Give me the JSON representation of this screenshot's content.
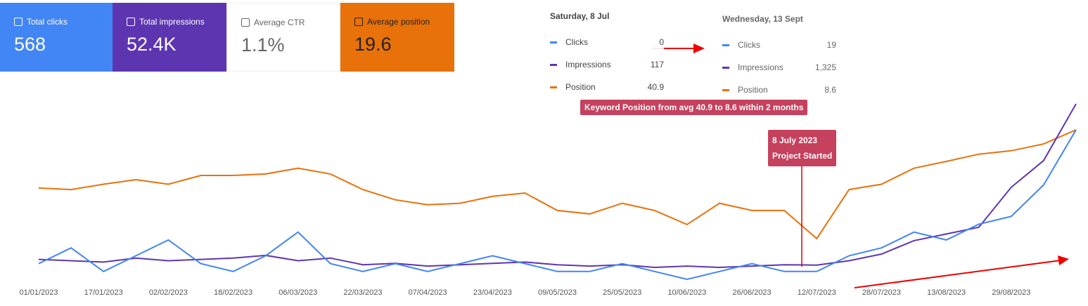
{
  "cards": [
    {
      "label": "Total clicks",
      "value": "568"
    },
    {
      "label": "Total impressions",
      "value": "52.4K"
    },
    {
      "label": "Average CTR",
      "value": "1.1%"
    },
    {
      "label": "Average position",
      "value": "19.6"
    }
  ],
  "tooltips": [
    {
      "date": "Saturday, 8 Jul",
      "rows": [
        {
          "name": "Clicks",
          "value": "0"
        },
        {
          "name": "Impressions",
          "value": "117"
        },
        {
          "name": "Position",
          "value": "40.9"
        }
      ]
    },
    {
      "date": "Wednesday, 13 Sept",
      "rows": [
        {
          "name": "Clicks",
          "value": "19"
        },
        {
          "name": "Impressions",
          "value": "1,325"
        },
        {
          "name": "Position",
          "value": "8.6"
        }
      ]
    }
  ],
  "annotations": [
    "Keyword Position from avg 40.9 to 8.6 within 2 months",
    "8 July 2023",
    "Project Started"
  ],
  "chart_data": {
    "type": "line",
    "x": [
      "01/01/2023",
      "09/01/2023",
      "17/01/2023",
      "25/01/2023",
      "02/02/2023",
      "10/02/2023",
      "18/02/2023",
      "26/02/2023",
      "06/03/2023",
      "14/03/2023",
      "22/03/2023",
      "30/03/2023",
      "07/04/2023",
      "15/04/2023",
      "23/04/2023",
      "01/05/2023",
      "09/05/2023",
      "17/05/2023",
      "25/05/2023",
      "02/06/2023",
      "10/06/2023",
      "18/06/2023",
      "26/06/2023",
      "04/07/2023",
      "12/07/2023",
      "20/07/2023",
      "28/07/2023",
      "05/08/2023",
      "13/08/2023",
      "21/08/2023",
      "29/08/2023",
      "06/09/2023",
      "14/09/2023"
    ],
    "xticks": [
      "01/01/2023",
      "17/01/2023",
      "02/02/2023",
      "18/02/2023",
      "06/03/2023",
      "22/03/2023",
      "07/04/2023",
      "23/04/2023",
      "09/05/2023",
      "25/05/2023",
      "10/06/2023",
      "26/06/2023",
      "12/07/2023",
      "28/07/2023",
      "13/08/2023",
      "29/08/2023"
    ],
    "series": [
      {
        "name": "Clicks",
        "color": "#4285f4",
        "values": [
          2,
          4,
          1,
          3,
          5,
          2,
          1,
          3,
          6,
          2,
          1,
          2,
          1,
          2,
          3,
          2,
          1,
          1,
          2,
          1,
          0,
          1,
          2,
          1,
          1,
          3,
          4,
          6,
          5,
          7,
          8,
          12,
          19
        ]
      },
      {
        "name": "Impressions",
        "color": "#5e35b1",
        "values": [
          160,
          150,
          140,
          170,
          150,
          160,
          170,
          190,
          150,
          170,
          120,
          130,
          110,
          120,
          130,
          140,
          120,
          110,
          120,
          100,
          110,
          100,
          110,
          120,
          117,
          150,
          200,
          300,
          350,
          400,
          700,
          900,
          1325
        ]
      },
      {
        "name": "Position",
        "color": "#e8710a",
        "values": [
          23,
          23.4,
          22,
          20.8,
          22,
          19.7,
          19.7,
          19.3,
          17.8,
          19.3,
          23.4,
          26.1,
          27.4,
          27,
          25.2,
          24.3,
          28.9,
          29.8,
          27,
          28.9,
          32.6,
          27,
          28.9,
          28.9,
          36.3,
          23.4,
          22,
          17.8,
          16,
          14.1,
          13.2,
          11.4,
          7.7
        ]
      }
    ]
  }
}
